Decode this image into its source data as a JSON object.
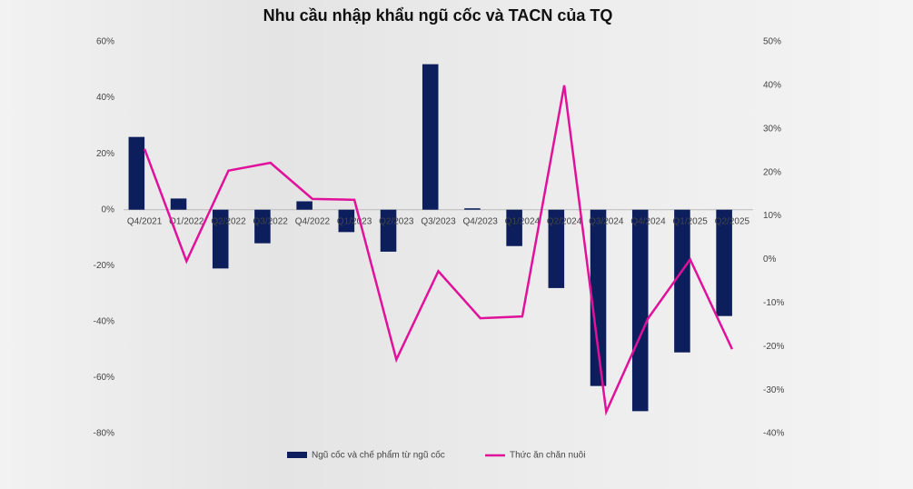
{
  "chart_data": {
    "type": "bar+line",
    "title": "Nhu cầu nhập khẩu ngũ cốc và TACN của TQ",
    "categories": [
      "Q4/2021",
      "Q1/2022",
      "Q2/2022",
      "Q3/2022",
      "Q4/2022",
      "Q1/2023",
      "Q2/2023",
      "Q3/2023",
      "Q4/2023",
      "Q1/2024",
      "Q2/2024",
      "Q3/2024",
      "Q4/2024",
      "Q1/2025",
      "Q2/2025"
    ],
    "series": [
      {
        "name": "Ngũ cốc và chế phẩm từ ngũ cốc",
        "type": "bar",
        "color": "#0c1f5c",
        "values": [
          26,
          4,
          -21,
          -12,
          3,
          -8,
          -15,
          52,
          0.5,
          -13,
          -28,
          -63,
          -72,
          -51,
          -38
        ]
      },
      {
        "name": "Thức ăn chăn nuôi",
        "type": "line",
        "axis": "y2",
        "color": "#e0119a",
        "values": [
          25.4,
          -0.4,
          20.4,
          22.2,
          13.9,
          13.7,
          -23,
          -2.7,
          -13.5,
          -13.1,
          40,
          -35,
          -13.5,
          0,
          -20.6
        ]
      }
    ],
    "ylim": [
      -80,
      60
    ],
    "yticks": [
      {
        "value": 60,
        "label": "60%"
      },
      {
        "value": 40,
        "label": "40%"
      },
      {
        "value": 20,
        "label": "20%"
      },
      {
        "value": 0,
        "label": "0%"
      },
      {
        "value": -20,
        "label": "-20%"
      },
      {
        "value": -40,
        "label": "-40%"
      },
      {
        "value": -60,
        "label": "-60%"
      },
      {
        "value": -80,
        "label": "-80%"
      }
    ],
    "y2lim": [
      -40,
      50
    ],
    "y2ticks": [
      {
        "value": 50,
        "label": "50%"
      },
      {
        "value": 40,
        "label": "40%"
      },
      {
        "value": 30,
        "label": "30%"
      },
      {
        "value": 20,
        "label": "20%"
      },
      {
        "value": 10,
        "label": "10%"
      },
      {
        "value": 0,
        "label": "0%"
      },
      {
        "value": -10,
        "label": "-10%"
      },
      {
        "value": -20,
        "label": "-20%"
      },
      {
        "value": -30,
        "label": "-30%"
      },
      {
        "value": -40,
        "label": "-40%"
      }
    ],
    "legend": "bottom"
  }
}
